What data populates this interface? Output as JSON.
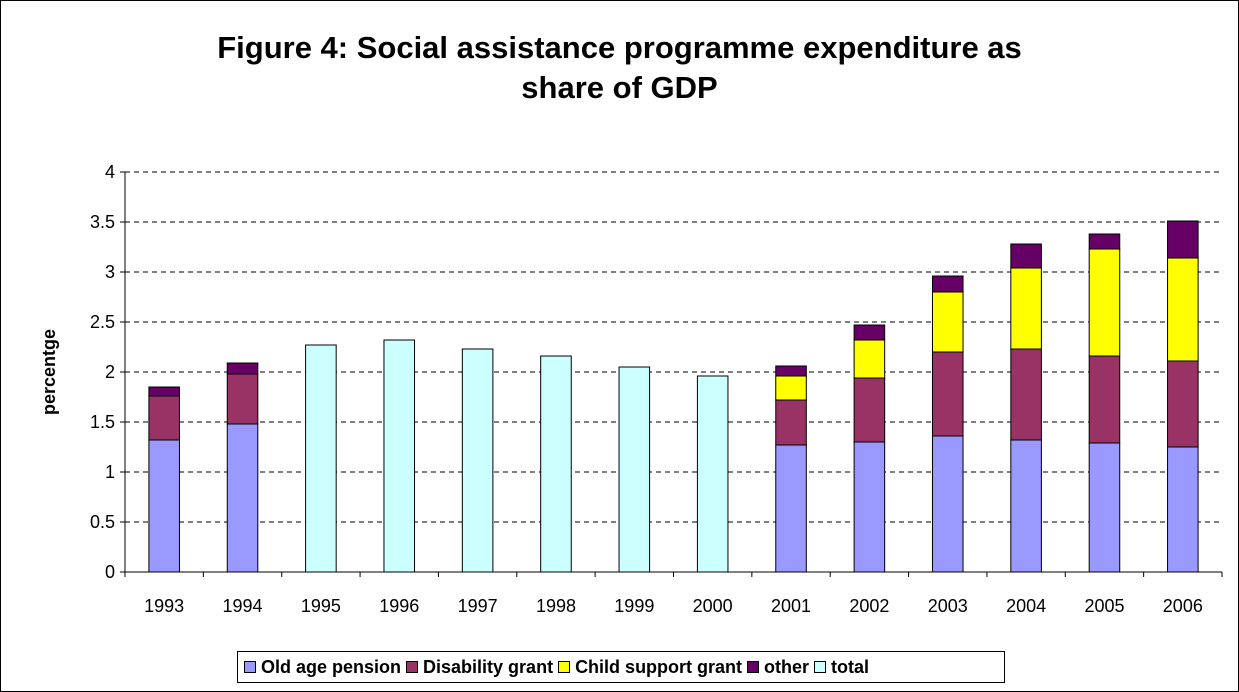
{
  "chart_data": {
    "type": "bar",
    "stacked": true,
    "title_lines": [
      "Figure 4: Social assistance programme expenditure as",
      "share of GDP"
    ],
    "xlabel": "",
    "ylabel": "percentge",
    "ylim": [
      0,
      4
    ],
    "yticks": [
      "0",
      "0.5",
      "1",
      "1.5",
      "2",
      "2.5",
      "3",
      "3.5",
      "4"
    ],
    "grid": "dashed horizontal",
    "legend_position": "bottom",
    "categories": [
      "1993",
      "1994",
      "1995",
      "1996",
      "1997",
      "1998",
      "1999",
      "2000",
      "2001",
      "2002",
      "2003",
      "2004",
      "2005",
      "2006"
    ],
    "series": [
      {
        "name": "Old age pension",
        "color": "#9999ff",
        "values": [
          1.32,
          1.48,
          null,
          null,
          null,
          null,
          null,
          null,
          1.27,
          1.3,
          1.36,
          1.32,
          1.29,
          1.25
        ]
      },
      {
        "name": "Disability grant",
        "color": "#993366",
        "values": [
          0.44,
          0.5,
          null,
          null,
          null,
          null,
          null,
          null,
          0.45,
          0.64,
          0.84,
          0.91,
          0.87,
          0.86
        ]
      },
      {
        "name": "Child support grant",
        "color": "#ffff00",
        "values": [
          0,
          0,
          null,
          null,
          null,
          null,
          null,
          null,
          0.24,
          0.38,
          0.6,
          0.81,
          1.07,
          1.03
        ]
      },
      {
        "name": "other",
        "color": "#660066",
        "values": [
          0.09,
          0.11,
          null,
          null,
          null,
          null,
          null,
          null,
          0.1,
          0.15,
          0.16,
          0.24,
          0.15,
          0.37
        ]
      },
      {
        "name": "total",
        "color": "#ccffff",
        "values": [
          null,
          null,
          2.27,
          2.32,
          2.23,
          2.16,
          2.05,
          1.96,
          null,
          null,
          null,
          null,
          null,
          null
        ]
      }
    ]
  }
}
